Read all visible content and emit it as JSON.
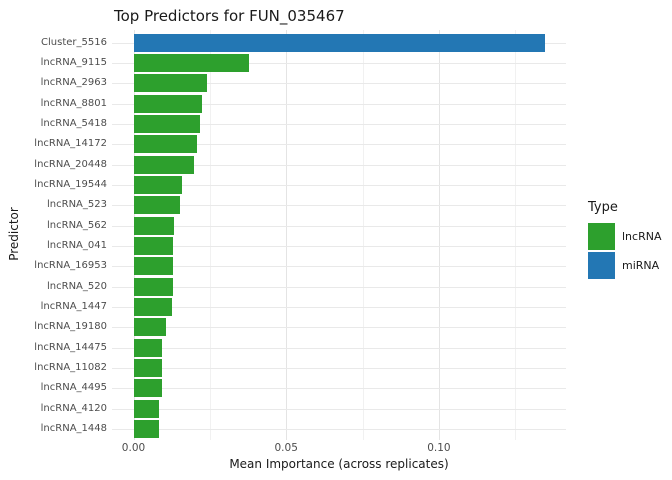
{
  "title": "Top Predictors for FUN_035467",
  "axes": {
    "x_label": "Mean Importance (across replicates)",
    "y_label": "Predictor",
    "x_ticks": [
      "0.00",
      "0.05",
      "0.10"
    ]
  },
  "legend": {
    "title": "Type",
    "entries": [
      {
        "label": "lncRNA",
        "color": "#2da02d"
      },
      {
        "label": "miRNA",
        "color": "#2377b4"
      }
    ]
  },
  "chart_data": {
    "type": "bar",
    "orientation": "horizontal",
    "title": "Top Predictors for FUN_035467",
    "xlabel": "Mean Importance (across replicates)",
    "ylabel": "Predictor",
    "xlim": [
      -0.0067,
      0.1414
    ],
    "x_major_ticks": [
      0,
      0.05,
      0.1
    ],
    "x_minor_gridlines": [
      0.025,
      0.075,
      0.125
    ],
    "grid": true,
    "legend_position": "right",
    "categories": [
      "Cluster_5516",
      "lncRNA_9115",
      "lncRNA_2963",
      "lncRNA_8801",
      "lncRNA_5418",
      "lncRNA_14172",
      "lncRNA_20448",
      "lncRNA_19544",
      "lncRNA_523",
      "lncRNA_562",
      "lncRNA_041",
      "lncRNA_16953",
      "lncRNA_520",
      "lncRNA_1447",
      "lncRNA_19180",
      "lncRNA_14475",
      "lncRNA_11082",
      "lncRNA_4495",
      "lncRNA_4120",
      "lncRNA_1448"
    ],
    "values": [
      0.1347,
      0.0379,
      0.0242,
      0.0224,
      0.0218,
      0.0208,
      0.0197,
      0.0158,
      0.0151,
      0.0132,
      0.0128,
      0.0128,
      0.0128,
      0.0125,
      0.0106,
      0.0093,
      0.0093,
      0.0093,
      0.0085,
      0.0083
    ],
    "types": [
      "miRNA",
      "lncRNA",
      "lncRNA",
      "lncRNA",
      "lncRNA",
      "lncRNA",
      "lncRNA",
      "lncRNA",
      "lncRNA",
      "lncRNA",
      "lncRNA",
      "lncRNA",
      "lncRNA",
      "lncRNA",
      "lncRNA",
      "lncRNA",
      "lncRNA",
      "lncRNA",
      "lncRNA",
      "lncRNA"
    ],
    "colors": {
      "lncRNA": "#2da02d",
      "miRNA": "#2377b4"
    }
  }
}
